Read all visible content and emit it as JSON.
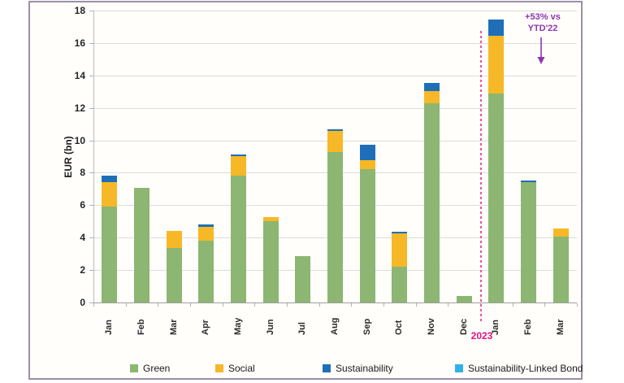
{
  "annotation": {
    "line1": "+53% vs",
    "line2": "YTD'22",
    "color": "#8e35b0"
  },
  "divider": {
    "label": "2023",
    "color": "#e4127b",
    "after_category_index": 11
  },
  "chart_data": {
    "type": "bar",
    "stacked": true,
    "ylabel": "EUR (bn)",
    "ylim": [
      0,
      18
    ],
    "ytick_step": 2,
    "grid": true,
    "legend_position": "bottom",
    "categories": [
      "Jan",
      "Feb",
      "Mar",
      "Apr",
      "May",
      "Jun",
      "Jul",
      "Aug",
      "Sep",
      "Oct",
      "Nov",
      "Dec",
      "Jan",
      "Feb",
      "Mar"
    ],
    "series": [
      {
        "name": "Green",
        "color": "#8cb671",
        "values": [
          5.9,
          7.05,
          3.35,
          3.8,
          7.8,
          5.0,
          2.85,
          9.3,
          8.2,
          2.2,
          12.3,
          0.4,
          12.9,
          7.4,
          4.05
        ]
      },
      {
        "name": "Social",
        "color": "#f6b826",
        "values": [
          1.5,
          0,
          1.05,
          0.85,
          1.25,
          0.25,
          0,
          1.3,
          0.55,
          2.05,
          0.75,
          0,
          3.55,
          0,
          0.5
        ]
      },
      {
        "name": "Sustainability",
        "color": "#1e6fb8",
        "values": [
          0.4,
          0,
          0,
          0.15,
          0.1,
          0,
          0,
          0.1,
          1.0,
          0.1,
          0.5,
          0,
          1.0,
          0.1,
          0
        ]
      },
      {
        "name": "Sustainability-Linked Bond",
        "color": "#2fb3e8",
        "values": [
          0,
          0,
          0,
          0,
          0,
          0,
          0,
          0,
          0,
          0,
          0,
          0,
          0,
          0,
          0
        ]
      }
    ],
    "totals": [
      7.8,
      7.05,
      4.4,
      4.8,
      9.15,
      5.25,
      2.85,
      10.7,
      9.75,
      4.35,
      13.55,
      0.4,
      17.45,
      7.5,
      4.55
    ]
  }
}
